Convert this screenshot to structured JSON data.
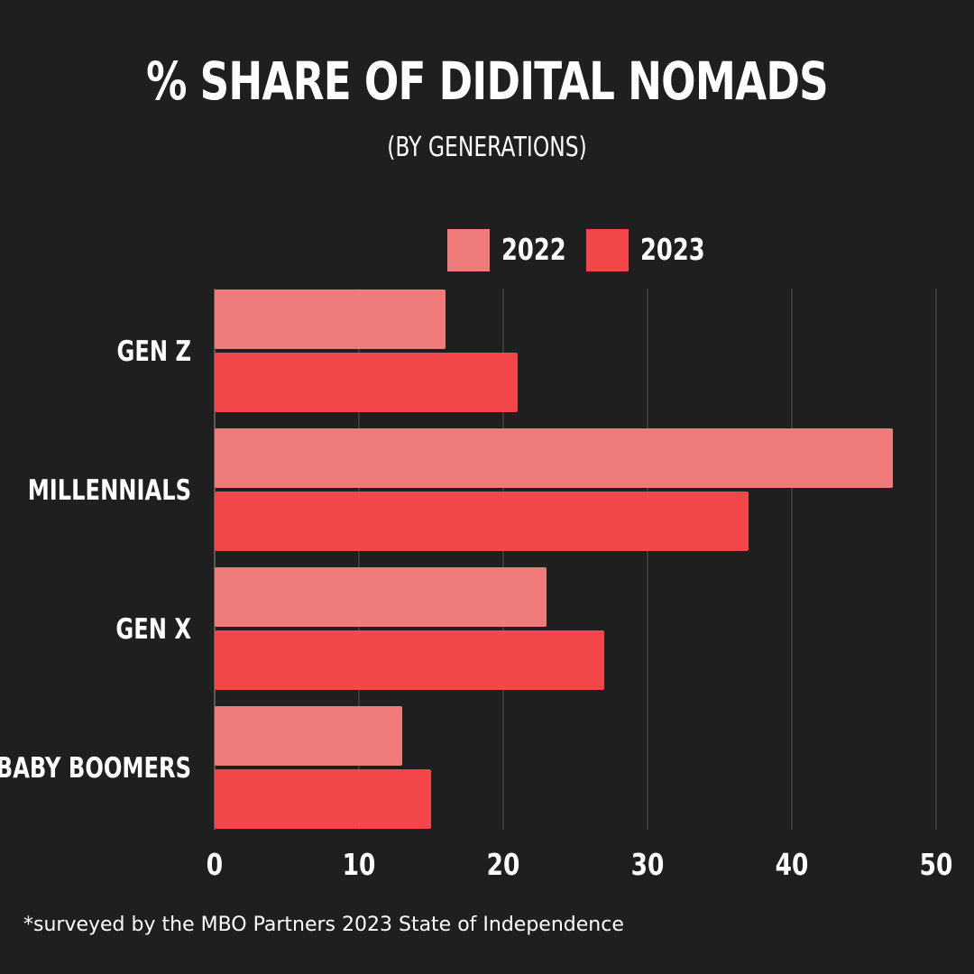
{
  "header": {
    "title": "% SHARE OF DIDITAL NOMADS",
    "subtitle": "(BY GENERATIONS)"
  },
  "footnote": "*surveyed by the MBO Partners 2023 State of Independence",
  "colors": {
    "background": "#1f1f1f",
    "series_2022": "#f07b7b",
    "series_2023": "#f2464a",
    "gridline": "#4a4a4a"
  },
  "chart_data": {
    "type": "bar",
    "orientation": "horizontal",
    "title": "% SHARE OF DIDITAL NOMADS",
    "subtitle": "(BY GENERATIONS)",
    "categories": [
      "GEN Z",
      "MILLENNIALS",
      "GEN X",
      "BABY BOOMERS"
    ],
    "series": [
      {
        "name": "2022",
        "color": "#f07b7b",
        "values": [
          16,
          47,
          23,
          13
        ]
      },
      {
        "name": "2023",
        "color": "#f2464a",
        "values": [
          21,
          37,
          27,
          15
        ]
      }
    ],
    "xlim": [
      0,
      50
    ],
    "xticks": [
      "0",
      "10",
      "20",
      "30",
      "40",
      "50"
    ],
    "xtick_values": [
      0,
      10,
      20,
      30,
      40,
      50
    ],
    "grid": true,
    "legend_position": "top-right"
  }
}
